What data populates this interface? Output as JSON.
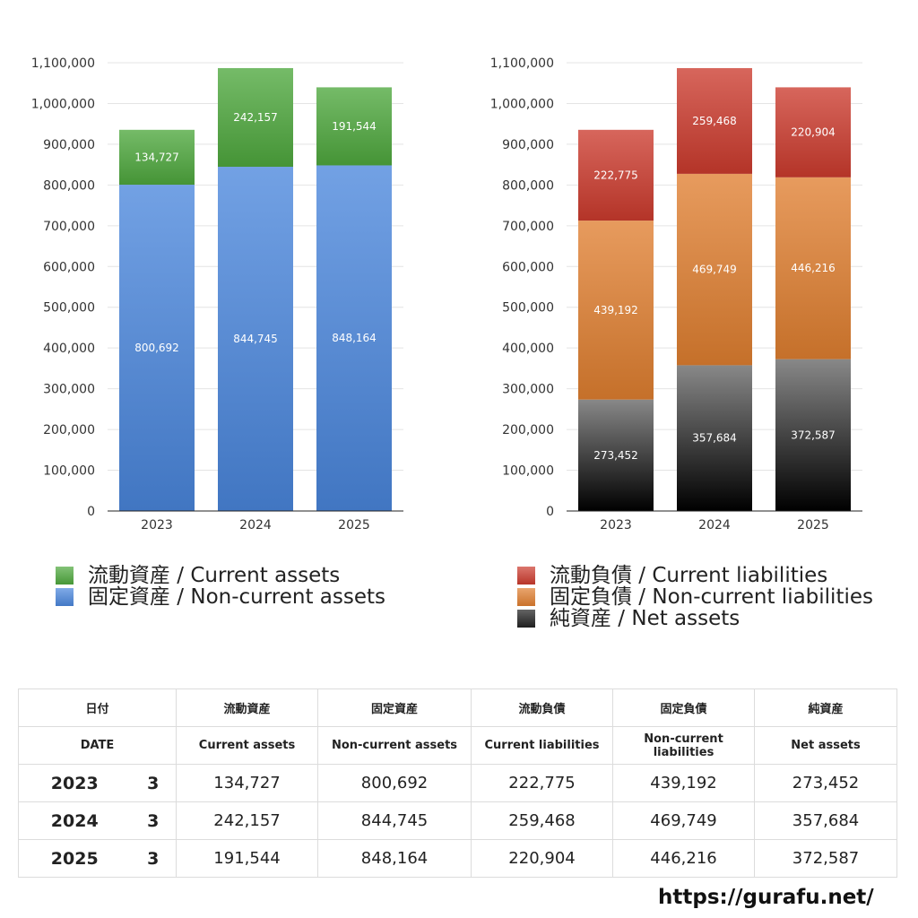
{
  "chart_data": [
    {
      "type": "bar",
      "stacked": true,
      "categories": [
        "2023",
        "2024",
        "2025"
      ],
      "ylim": [
        0,
        1100000
      ],
      "yticks": [
        0,
        100000,
        200000,
        300000,
        400000,
        500000,
        600000,
        700000,
        800000,
        900000,
        1000000,
        1100000
      ],
      "grid": true,
      "legend_position": "bottom",
      "series": [
        {
          "name": "固定資産 / Non-current assets",
          "values": [
            800692,
            844745,
            848164
          ],
          "color": "#4a86dc"
        },
        {
          "name": "流動資産 / Current assets",
          "values": [
            134727,
            242157,
            191544
          ],
          "color": "#4ea83d"
        }
      ]
    },
    {
      "type": "bar",
      "stacked": true,
      "categories": [
        "2023",
        "2024",
        "2025"
      ],
      "ylim": [
        0,
        1100000
      ],
      "yticks": [
        0,
        100000,
        200000,
        300000,
        400000,
        500000,
        600000,
        700000,
        800000,
        900000,
        1000000,
        1100000
      ],
      "grid": true,
      "legend_position": "bottom",
      "series": [
        {
          "name": "純資産 / Net assets",
          "values": [
            273452,
            357684,
            372587
          ],
          "color": "#333333"
        },
        {
          "name": "固定負債 / Non-current liabilities",
          "values": [
            439192,
            469749,
            446216
          ],
          "color": "#e07f30"
        },
        {
          "name": "流動負債 / Current liabilities",
          "values": [
            222775,
            259468,
            220904
          ],
          "color": "#cc3b2e"
        }
      ]
    }
  ],
  "legend_assets": [
    {
      "label": "流動資産 / Current assets",
      "color": "#4ea83d"
    },
    {
      "label": "固定資産 / Non-current assets",
      "color": "#4a86dc"
    }
  ],
  "legend_liab": [
    {
      "label": "流動負債 / Current liabilities",
      "color": "#cc3b2e"
    },
    {
      "label": "固定負債 / Non-current liabilities",
      "color": "#e07f30"
    },
    {
      "label": "純資産 / Net assets",
      "color": "#222222"
    }
  ],
  "table": {
    "header_jp": [
      "日付",
      "流動資産",
      "固定資産",
      "流動負債",
      "固定負債",
      "純資産"
    ],
    "header_en": [
      "DATE",
      "Current assets",
      "Non-current assets",
      "Current liabilities",
      "Non-current liabilities",
      "Net assets"
    ],
    "rows": [
      {
        "year": "2023",
        "month": "3",
        "values": [
          "134,727",
          "800,692",
          "222,775",
          "439,192",
          "273,452"
        ]
      },
      {
        "year": "2024",
        "month": "3",
        "values": [
          "242,157",
          "844,745",
          "259,468",
          "469,749",
          "357,684"
        ]
      },
      {
        "year": "2025",
        "month": "3",
        "values": [
          "191,544",
          "848,164",
          "220,904",
          "446,216",
          "372,587"
        ]
      }
    ]
  },
  "footer_url": "https://gurafu.net/"
}
